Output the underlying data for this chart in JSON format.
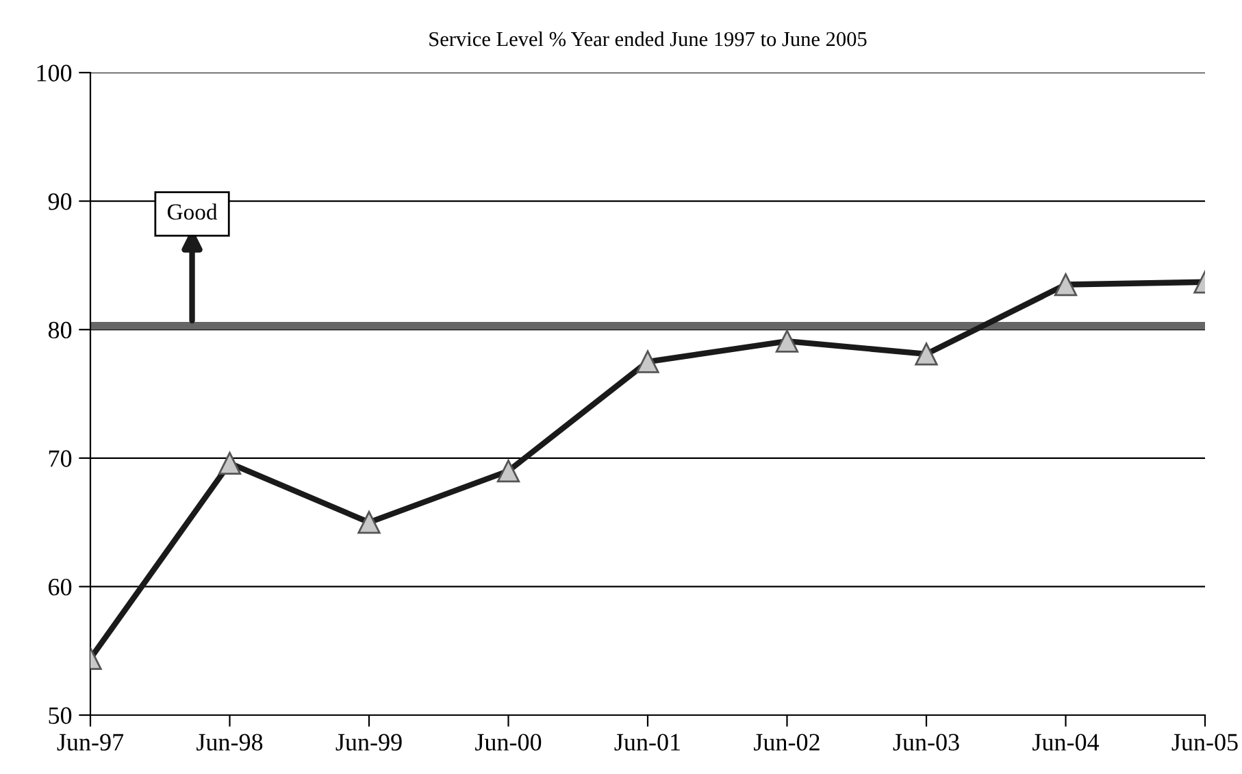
{
  "chart_data": {
    "type": "line",
    "title": "Service Level % Year ended June 1997 to June 2005",
    "categories": [
      "Jun-97",
      "Jun-98",
      "Jun-99",
      "Jun-00",
      "Jun-01",
      "Jun-02",
      "Jun-03",
      "Jun-04",
      "Jun-05"
    ],
    "series": [
      {
        "color": "#1a1a1a",
        "values": [
          54.4,
          69.6,
          65.0,
          69.0,
          77.5,
          79.1,
          78.1,
          83.5,
          83.7
        ]
      }
    ],
    "ylim": [
      50,
      100
    ],
    "yticks": [
      50,
      60,
      70,
      80,
      90,
      100
    ],
    "ref_lines": [
      {
        "axis": "y",
        "value": 80.3,
        "color": "#666666",
        "line_style": "solid"
      }
    ],
    "annotations": [
      "Good"
    ],
    "grid": "y",
    "marker": "triangle",
    "line_style": "solid",
    "legend": false
  }
}
